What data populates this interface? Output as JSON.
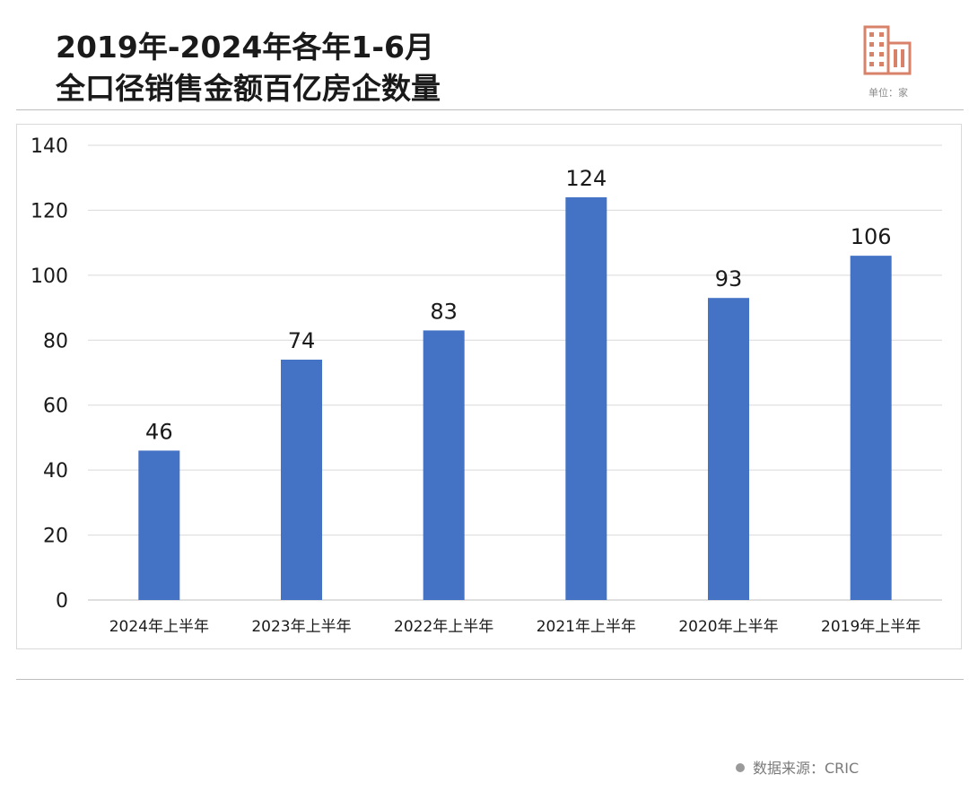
{
  "title": {
    "line1": "2019年-2024年各年1-6月",
    "line2": "全口径销售金额百亿房企数量"
  },
  "unit": "单位：家",
  "source": "数据来源：CRIC",
  "colors": {
    "bar": "#4472C4",
    "grid": "#d9d9d9",
    "icon": "#d9826a",
    "text": "#1a1a1a"
  },
  "chart_data": {
    "type": "bar",
    "categories": [
      "2024年上半年",
      "2023年上半年",
      "2022年上半年",
      "2021年上半年",
      "2020年上半年",
      "2019年上半年"
    ],
    "values": [
      46,
      74,
      83,
      124,
      93,
      106
    ],
    "data_labels": [
      "46",
      "74",
      "83",
      "124",
      "93",
      "106"
    ],
    "ylim": [
      0,
      140
    ],
    "yticks": [
      "0",
      "20",
      "40",
      "60",
      "80",
      "100",
      "120",
      "140"
    ],
    "grid": true,
    "legend": "none",
    "title": "",
    "xlabel": "",
    "ylabel": ""
  }
}
